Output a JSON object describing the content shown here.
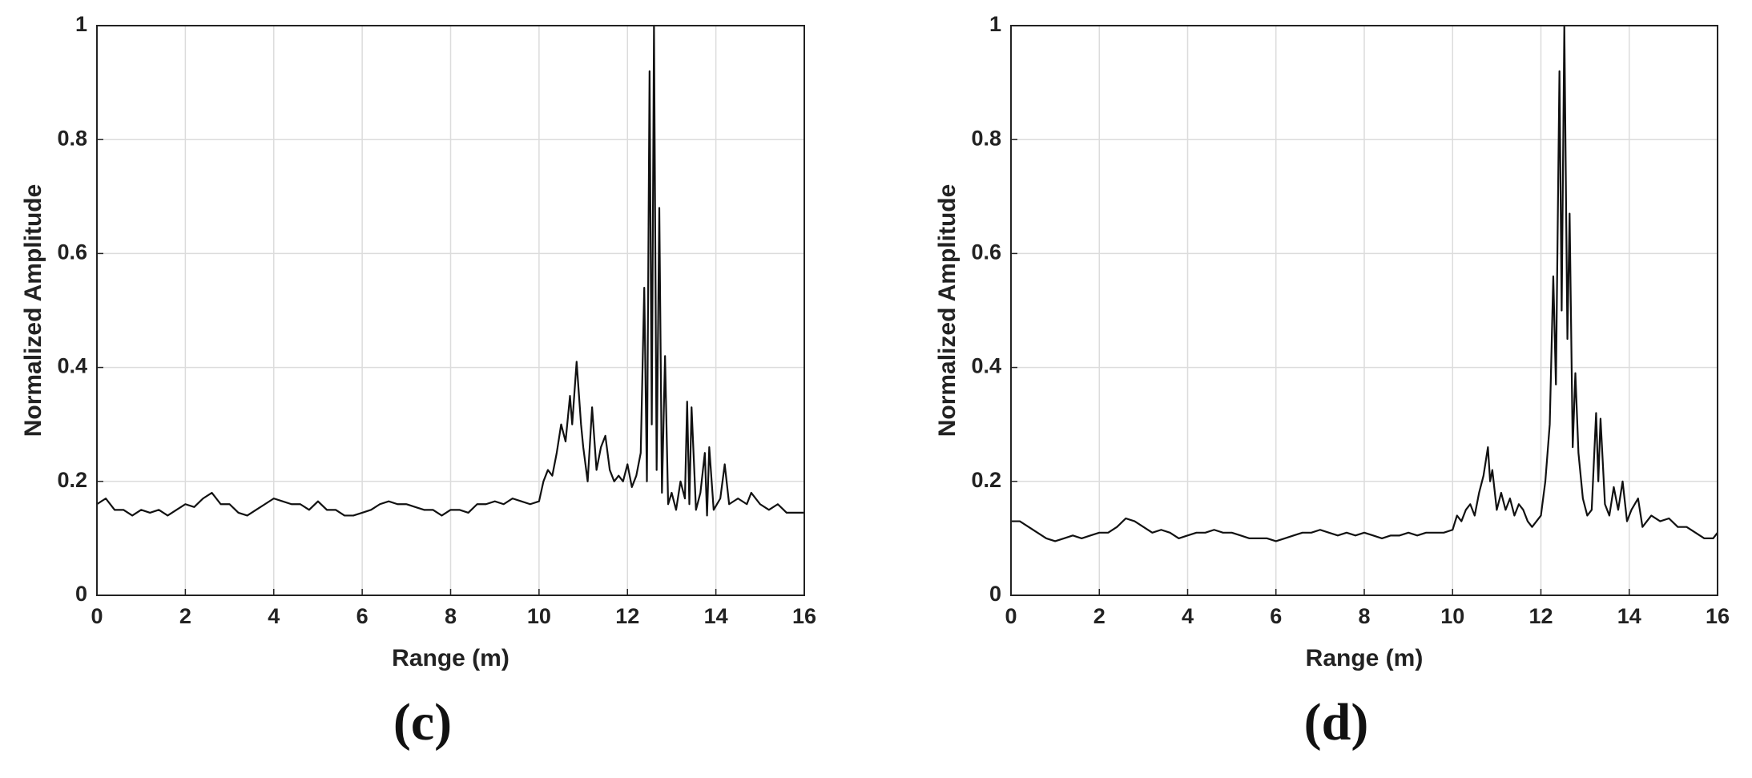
{
  "chart_data": [
    {
      "type": "line",
      "xlabel": "Range (m)",
      "ylabel": "Normalized Amplitude",
      "caption": "(c)",
      "color": "#111111",
      "grid": true,
      "xlim": [
        0,
        16
      ],
      "xticks": [
        0,
        2,
        4,
        6,
        8,
        10,
        12,
        14,
        16
      ],
      "ylim": [
        0,
        1
      ],
      "yticks": [
        0,
        0.2,
        0.4,
        0.6,
        0.8,
        1
      ],
      "x": [
        0,
        0.2,
        0.4,
        0.6,
        0.8,
        1.0,
        1.2,
        1.4,
        1.6,
        1.8,
        2.0,
        2.2,
        2.4,
        2.6,
        2.8,
        3.0,
        3.2,
        3.4,
        3.6,
        3.8,
        4.0,
        4.2,
        4.4,
        4.6,
        4.8,
        5.0,
        5.2,
        5.4,
        5.6,
        5.8,
        6.0,
        6.2,
        6.4,
        6.6,
        6.8,
        7.0,
        7.2,
        7.4,
        7.6,
        7.8,
        8.0,
        8.2,
        8.4,
        8.6,
        8.8,
        9.0,
        9.2,
        9.4,
        9.6,
        9.8,
        10.0,
        10.1,
        10.2,
        10.3,
        10.4,
        10.5,
        10.6,
        10.7,
        10.75,
        10.85,
        10.95,
        11.0,
        11.1,
        11.2,
        11.3,
        11.4,
        11.5,
        11.6,
        11.7,
        11.8,
        11.9,
        12.0,
        12.1,
        12.2,
        12.3,
        12.38,
        12.44,
        12.5,
        12.55,
        12.6,
        12.66,
        12.72,
        12.78,
        12.85,
        12.92,
        13.0,
        13.1,
        13.2,
        13.3,
        13.35,
        13.4,
        13.45,
        13.55,
        13.65,
        13.75,
        13.8,
        13.85,
        13.95,
        14.1,
        14.2,
        14.3,
        14.5,
        14.7,
        14.8,
        15.0,
        15.2,
        15.4,
        15.6,
        15.8,
        16.0
      ],
      "values": [
        0.16,
        0.17,
        0.15,
        0.15,
        0.14,
        0.15,
        0.145,
        0.15,
        0.14,
        0.15,
        0.16,
        0.155,
        0.17,
        0.18,
        0.16,
        0.16,
        0.145,
        0.14,
        0.15,
        0.16,
        0.17,
        0.165,
        0.16,
        0.16,
        0.15,
        0.165,
        0.15,
        0.15,
        0.14,
        0.14,
        0.145,
        0.15,
        0.16,
        0.165,
        0.16,
        0.16,
        0.155,
        0.15,
        0.15,
        0.14,
        0.15,
        0.15,
        0.145,
        0.16,
        0.16,
        0.165,
        0.16,
        0.17,
        0.165,
        0.16,
        0.165,
        0.2,
        0.22,
        0.21,
        0.25,
        0.3,
        0.27,
        0.35,
        0.3,
        0.41,
        0.3,
        0.26,
        0.2,
        0.33,
        0.22,
        0.26,
        0.28,
        0.22,
        0.2,
        0.21,
        0.2,
        0.23,
        0.19,
        0.21,
        0.25,
        0.54,
        0.2,
        0.92,
        0.3,
        1.0,
        0.22,
        0.68,
        0.18,
        0.42,
        0.16,
        0.18,
        0.15,
        0.2,
        0.17,
        0.34,
        0.16,
        0.33,
        0.15,
        0.18,
        0.25,
        0.14,
        0.26,
        0.15,
        0.17,
        0.23,
        0.16,
        0.17,
        0.16,
        0.18,
        0.16,
        0.15,
        0.16,
        0.145,
        0.145,
        0.145
      ]
    },
    {
      "type": "line",
      "xlabel": "Range (m)",
      "ylabel": "Normalized Amplitude",
      "caption": "(d)",
      "color": "#111111",
      "grid": true,
      "xlim": [
        0,
        16
      ],
      "xticks": [
        0,
        2,
        4,
        6,
        8,
        10,
        12,
        14,
        16
      ],
      "ylim": [
        0,
        1
      ],
      "yticks": [
        0,
        0.2,
        0.4,
        0.6,
        0.8,
        1
      ],
      "x": [
        0,
        0.2,
        0.4,
        0.6,
        0.8,
        1.0,
        1.2,
        1.4,
        1.6,
        1.8,
        2.0,
        2.2,
        2.4,
        2.6,
        2.8,
        3.0,
        3.2,
        3.4,
        3.6,
        3.8,
        4.0,
        4.2,
        4.4,
        4.6,
        4.8,
        5.0,
        5.2,
        5.4,
        5.6,
        5.8,
        6.0,
        6.2,
        6.4,
        6.6,
        6.8,
        7.0,
        7.2,
        7.4,
        7.6,
        7.8,
        8.0,
        8.2,
        8.4,
        8.6,
        8.8,
        9.0,
        9.2,
        9.4,
        9.6,
        9.8,
        10.0,
        10.1,
        10.2,
        10.3,
        10.4,
        10.5,
        10.6,
        10.7,
        10.8,
        10.85,
        10.9,
        11.0,
        11.1,
        11.2,
        11.3,
        11.4,
        11.5,
        11.6,
        11.7,
        11.8,
        11.9,
        12.0,
        12.1,
        12.2,
        12.28,
        12.34,
        12.42,
        12.47,
        12.53,
        12.6,
        12.65,
        12.72,
        12.78,
        12.85,
        12.95,
        13.05,
        13.15,
        13.25,
        13.3,
        13.35,
        13.45,
        13.55,
        13.65,
        13.75,
        13.85,
        13.95,
        14.05,
        14.2,
        14.3,
        14.5,
        14.7,
        14.9,
        15.1,
        15.3,
        15.5,
        15.7,
        15.9,
        16.0
      ],
      "values": [
        0.13,
        0.13,
        0.12,
        0.11,
        0.1,
        0.095,
        0.1,
        0.105,
        0.1,
        0.105,
        0.11,
        0.11,
        0.12,
        0.135,
        0.13,
        0.12,
        0.11,
        0.115,
        0.11,
        0.1,
        0.105,
        0.11,
        0.11,
        0.115,
        0.11,
        0.11,
        0.105,
        0.1,
        0.1,
        0.1,
        0.095,
        0.1,
        0.105,
        0.11,
        0.11,
        0.115,
        0.11,
        0.105,
        0.11,
        0.105,
        0.11,
        0.105,
        0.1,
        0.105,
        0.105,
        0.11,
        0.105,
        0.11,
        0.11,
        0.11,
        0.115,
        0.14,
        0.13,
        0.15,
        0.16,
        0.14,
        0.18,
        0.21,
        0.26,
        0.2,
        0.22,
        0.15,
        0.18,
        0.15,
        0.17,
        0.14,
        0.16,
        0.15,
        0.13,
        0.12,
        0.13,
        0.14,
        0.2,
        0.3,
        0.56,
        0.37,
        0.92,
        0.5,
        1.0,
        0.45,
        0.67,
        0.26,
        0.39,
        0.25,
        0.17,
        0.14,
        0.15,
        0.32,
        0.2,
        0.31,
        0.16,
        0.14,
        0.19,
        0.15,
        0.2,
        0.13,
        0.15,
        0.17,
        0.12,
        0.14,
        0.13,
        0.135,
        0.12,
        0.12,
        0.11,
        0.1,
        0.1,
        0.11
      ]
    }
  ]
}
